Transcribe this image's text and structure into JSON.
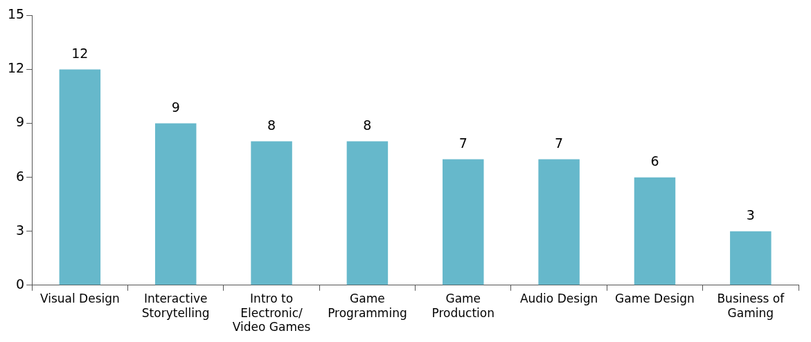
{
  "chart_data": {
    "type": "bar",
    "categories": [
      "Visual Design",
      "Interactive Storytelling",
      "Intro to Electronic/ Video Games",
      "Game Programming",
      "Game Production",
      "Audio Design",
      "Game Design",
      "Business of Gaming"
    ],
    "values": [
      12,
      9,
      8,
      8,
      7,
      7,
      6,
      3
    ],
    "color": "#66b8cb",
    "ylim": [
      0,
      15
    ],
    "yticks": [
      0,
      3,
      6,
      9,
      12,
      15
    ],
    "grid": false,
    "legend": false,
    "data_labels": true
  }
}
